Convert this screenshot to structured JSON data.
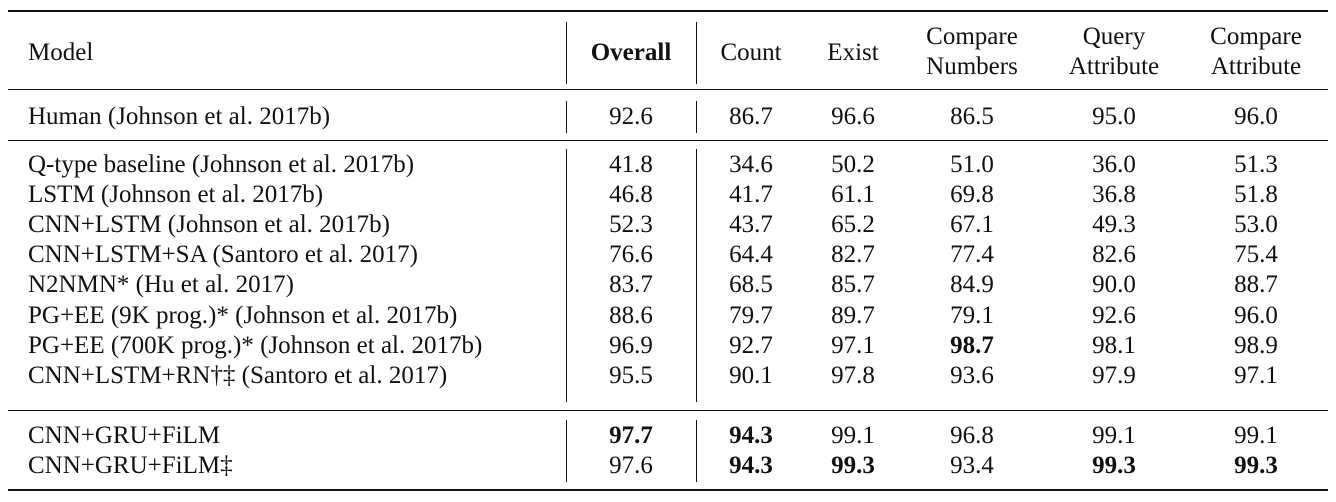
{
  "table": {
    "headers": {
      "model": "Model",
      "overall": "Overall",
      "count": "Count",
      "exist": "Exist",
      "compare_numbers": [
        "Compare",
        "Numbers"
      ],
      "query_attribute": [
        "Query",
        "Attribute"
      ],
      "compare_attribute": [
        "Compare",
        "Attribute"
      ]
    },
    "rows": [
      {
        "model": "Human (Johnson et al. 2017b)",
        "overall": "92.6",
        "count": "86.7",
        "exist": "96.6",
        "compare_numbers": "86.5",
        "query_attribute": "95.0",
        "compare_attribute": "96.0"
      },
      {
        "model": "Q-type baseline (Johnson et al. 2017b)",
        "overall": "41.8",
        "count": "34.6",
        "exist": "50.2",
        "compare_numbers": "51.0",
        "query_attribute": "36.0",
        "compare_attribute": "51.3"
      },
      {
        "model": "LSTM (Johnson et al. 2017b)",
        "overall": "46.8",
        "count": "41.7",
        "exist": "61.1",
        "compare_numbers": "69.8",
        "query_attribute": "36.8",
        "compare_attribute": "51.8"
      },
      {
        "model": "CNN+LSTM (Johnson et al. 2017b)",
        "overall": "52.3",
        "count": "43.7",
        "exist": "65.2",
        "compare_numbers": "67.1",
        "query_attribute": "49.3",
        "compare_attribute": "53.0"
      },
      {
        "model": "CNN+LSTM+SA (Santoro et al. 2017)",
        "overall": "76.6",
        "count": "64.4",
        "exist": "82.7",
        "compare_numbers": "77.4",
        "query_attribute": "82.6",
        "compare_attribute": "75.4"
      },
      {
        "model": "N2NMN* (Hu et al. 2017)",
        "overall": "83.7",
        "count": "68.5",
        "exist": "85.7",
        "compare_numbers": "84.9",
        "query_attribute": "90.0",
        "compare_attribute": "88.7"
      },
      {
        "model": "PG+EE (9K prog.)* (Johnson et al. 2017b)",
        "overall": "88.6",
        "count": "79.7",
        "exist": "89.7",
        "compare_numbers": "79.1",
        "query_attribute": "92.6",
        "compare_attribute": "96.0"
      },
      {
        "model": "PG+EE (700K prog.)* (Johnson et al. 2017b)",
        "overall": "96.9",
        "count": "92.7",
        "exist": "97.1",
        "compare_numbers": "98.7",
        "query_attribute": "98.1",
        "compare_attribute": "98.9",
        "bold": [
          "compare_numbers"
        ]
      },
      {
        "model": "CNN+LSTM+RN†‡ (Santoro et al. 2017)",
        "overall": "95.5",
        "count": "90.1",
        "exist": "97.8",
        "compare_numbers": "93.6",
        "query_attribute": "97.9",
        "compare_attribute": "97.1"
      },
      {
        "model": "CNN+GRU+FiLM",
        "overall": "97.7",
        "count": "94.3",
        "exist": "99.1",
        "compare_numbers": "96.8",
        "query_attribute": "99.1",
        "compare_attribute": "99.1",
        "bold": [
          "overall",
          "count"
        ]
      },
      {
        "model": "CNN+GRU+FiLM‡",
        "overall": "97.6",
        "count": "94.3",
        "exist": "99.3",
        "compare_numbers": "93.4",
        "query_attribute": "99.3",
        "compare_attribute": "99.3",
        "bold": [
          "count",
          "exist",
          "query_attribute",
          "compare_attribute"
        ]
      }
    ]
  }
}
